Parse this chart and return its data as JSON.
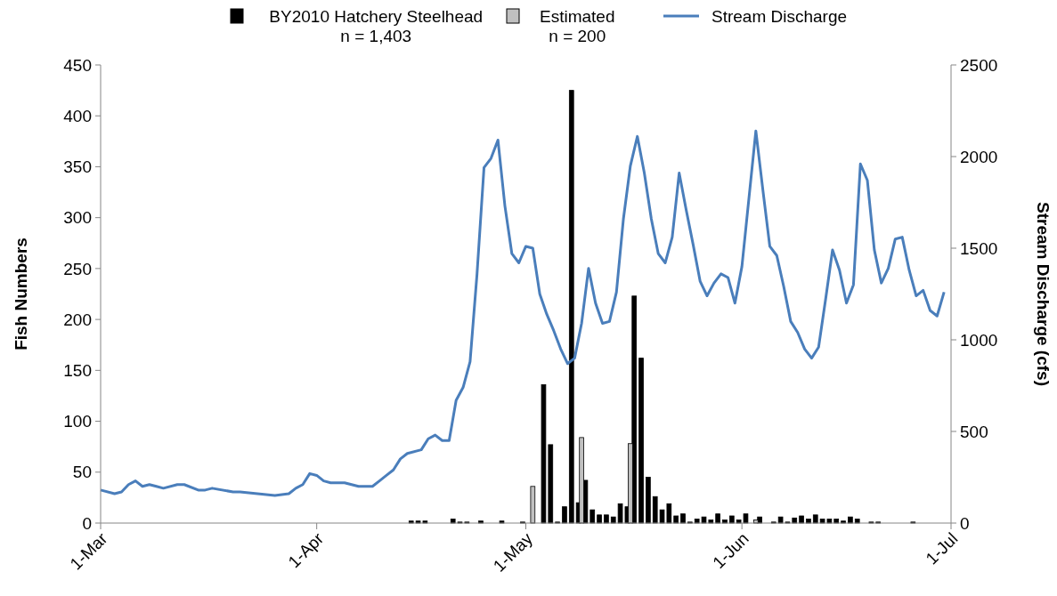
{
  "chart_data": {
    "type": "bar",
    "xlim": [
      "--03-01",
      "--07-01"
    ],
    "xticks": [
      {
        "value": "--03-01",
        "label": "1-Mar"
      },
      {
        "value": "--04-01",
        "label": "1-Apr"
      },
      {
        "value": "--05-01",
        "label": "1-May"
      },
      {
        "value": "--06-01",
        "label": "1-Jun"
      },
      {
        "value": "--07-01",
        "label": "1-Jul"
      }
    ],
    "ylim": [
      0,
      450
    ],
    "yticks": [
      0,
      50,
      100,
      150,
      200,
      250,
      300,
      350,
      400,
      450
    ],
    "y2lim": [
      0,
      2500
    ],
    "y2ticks": [
      0,
      500,
      1000,
      1500,
      2000,
      2500
    ],
    "ylabel": "Fish Numbers",
    "y2label": "Stream Discharge (cfs)",
    "legend": "top",
    "grid": false,
    "series": [
      {
        "name": "BY2010 Hatchery Steelhead\nn = 1,403",
        "color": "#000000",
        "x": [
          "--04-14",
          "--04-15",
          "--04-16",
          "--04-20",
          "--04-21",
          "--04-22",
          "--04-24",
          "--04-27",
          "--04-30",
          "--05-03",
          "--05-04",
          "--05-05",
          "--05-06",
          "--05-07",
          "--05-08",
          "--05-09",
          "--05-10",
          "--05-11",
          "--05-12",
          "--05-13",
          "--05-14",
          "--05-15",
          "--05-16",
          "--05-17",
          "--05-18",
          "--05-19",
          "--05-20",
          "--05-21",
          "--05-22",
          "--05-23",
          "--05-24",
          "--05-25",
          "--05-26",
          "--05-27",
          "--05-28",
          "--05-29",
          "--05-30",
          "--05-31",
          "--06-01",
          "--06-03",
          "--06-05",
          "--06-06",
          "--06-07",
          "--06-08",
          "--06-09",
          "--06-10",
          "--06-11",
          "--06-12",
          "--06-13",
          "--06-14",
          "--06-15",
          "--06-16",
          "--06-17",
          "--06-19",
          "--06-20",
          "--06-25"
        ],
        "values": [
          2,
          2,
          2,
          4,
          1,
          1,
          2,
          2,
          1,
          136,
          77,
          1,
          16,
          425,
          20,
          42,
          13,
          8,
          8,
          6,
          19,
          16,
          223,
          162,
          45,
          26,
          13,
          19,
          7,
          9,
          1,
          4,
          6,
          3,
          9,
          3,
          7,
          3,
          9,
          6,
          1,
          6,
          1,
          5,
          7,
          4,
          8,
          4,
          4,
          4,
          2,
          6,
          4,
          1,
          1,
          1
        ]
      },
      {
        "name": "Estimated\nn = 200",
        "color": "#c0c0c0",
        "x": [
          "--05-02",
          "--05-09",
          "--05-16",
          "--06-03"
        ],
        "values": [
          36,
          84,
          78,
          3
        ]
      },
      {
        "name": "Stream Discharge",
        "type": "line",
        "axis": "y2",
        "color": "#4a7ebb",
        "line_style": "solid",
        "marker": "none",
        "x": [
          "--03-01",
          "--03-03",
          "--03-04",
          "--03-05",
          "--03-06",
          "--03-07",
          "--03-08",
          "--03-09",
          "--03-10",
          "--03-12",
          "--03-13",
          "--03-15",
          "--03-16",
          "--03-17",
          "--03-20",
          "--03-21",
          "--03-26",
          "--03-28",
          "--03-29",
          "--03-30",
          "--03-31",
          "--04-01",
          "--04-02",
          "--04-03",
          "--04-05",
          "--04-07",
          "--04-09",
          "--04-10",
          "--04-11",
          "--04-12",
          "--04-13",
          "--04-14",
          "--04-16",
          "--04-17",
          "--04-18",
          "--04-19",
          "--04-20",
          "--04-21",
          "--04-22",
          "--04-23",
          "--04-24",
          "--04-25",
          "--04-26",
          "--04-27",
          "--04-28",
          "--04-29",
          "--04-30",
          "--05-01",
          "--05-02",
          "--05-03",
          "--05-04",
          "--05-05",
          "--05-06",
          "--05-07",
          "--05-08",
          "--05-09",
          "--05-10",
          "--05-11",
          "--05-12",
          "--05-13",
          "--05-14",
          "--05-15",
          "--05-16",
          "--05-17",
          "--05-18",
          "--05-19",
          "--05-20",
          "--05-21",
          "--05-22",
          "--05-23",
          "--05-24",
          "--05-25",
          "--05-26",
          "--05-27",
          "--05-28",
          "--05-29",
          "--05-30",
          "--05-31",
          "--06-01",
          "--06-02",
          "--06-03",
          "--06-04",
          "--06-05",
          "--06-06",
          "--06-07",
          "--06-08",
          "--06-09",
          "--06-10",
          "--06-11",
          "--06-12",
          "--06-13",
          "--06-14",
          "--06-15",
          "--06-16",
          "--06-17",
          "--06-18",
          "--06-19",
          "--06-20",
          "--06-21",
          "--06-22",
          "--06-23",
          "--06-24",
          "--06-25",
          "--06-26",
          "--06-27",
          "--06-28",
          "--06-29",
          "--06-30"
        ],
        "values": [
          180,
          160,
          170,
          210,
          230,
          200,
          210,
          200,
          190,
          210,
          210,
          180,
          180,
          190,
          170,
          170,
          150,
          160,
          190,
          210,
          270,
          260,
          230,
          220,
          220,
          200,
          200,
          230,
          260,
          290,
          350,
          380,
          400,
          460,
          480,
          450,
          450,
          670,
          740,
          880,
          1360,
          1940,
          1990,
          2090,
          1730,
          1470,
          1420,
          1510,
          1500,
          1250,
          1140,
          1050,
          950,
          870,
          900,
          1090,
          1390,
          1200,
          1090,
          1100,
          1260,
          1660,
          1950,
          2110,
          1910,
          1660,
          1470,
          1420,
          1560,
          1910,
          1710,
          1520,
          1320,
          1240,
          1310,
          1360,
          1340,
          1200,
          1400,
          1770,
          2140,
          1820,
          1510,
          1460,
          1290,
          1100,
          1040,
          950,
          900,
          960,
          1220,
          1490,
          1380,
          1200,
          1300,
          1960,
          1870,
          1490,
          1310,
          1390,
          1550,
          1560,
          1380,
          1240,
          1270,
          1160,
          1130,
          1260
        ]
      }
    ]
  }
}
